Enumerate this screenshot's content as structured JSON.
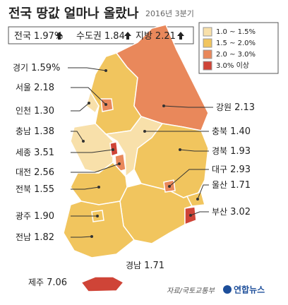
{
  "header": {
    "title": "전국 땅값 얼마나 올랐나",
    "subtitle": "2016년 3분기"
  },
  "summary": [
    {
      "name": "전국",
      "value": "1.97%"
    },
    {
      "name": "수도권",
      "value": "1.84"
    },
    {
      "name": "지방",
      "value": "2.21"
    }
  ],
  "legend": [
    {
      "label": "1.0 ~ 1.5%",
      "color": "#f8e0aa"
    },
    {
      "label": "1.5 ~ 2.0%",
      "color": "#f1c55e"
    },
    {
      "label": "2.0 ~ 3.0%",
      "color": "#e9885b"
    },
    {
      "label": "3.0% 이상",
      "color": "#cf4437"
    }
  ],
  "regions": [
    {
      "name": "경기",
      "value": "1.59%",
      "color": "#f1c55e"
    },
    {
      "name": "강원",
      "value": "2.13",
      "color": "#e9885b"
    },
    {
      "name": "서울",
      "value": "2.18",
      "color": "#e9885b"
    },
    {
      "name": "인천",
      "value": "1.30",
      "color": "#f8e0aa"
    },
    {
      "name": "충남",
      "value": "1.38",
      "color": "#f8e0aa"
    },
    {
      "name": "충북",
      "value": "1.40",
      "color": "#f8e0aa"
    },
    {
      "name": "경북",
      "value": "1.93",
      "color": "#f1c55e"
    },
    {
      "name": "세종",
      "value": "3.51",
      "color": "#cf4437"
    },
    {
      "name": "대전",
      "value": "2.56",
      "color": "#e9885b"
    },
    {
      "name": "전북",
      "value": "1.55",
      "color": "#f1c55e"
    },
    {
      "name": "경남",
      "value": "1.71",
      "color": "#f1c55e"
    },
    {
      "name": "대구",
      "value": "2.93",
      "color": "#e9885b"
    },
    {
      "name": "울산",
      "value": "1.71",
      "color": "#f1c55e"
    },
    {
      "name": "부산",
      "value": "3.02",
      "color": "#cf4437"
    },
    {
      "name": "전남",
      "value": "1.82",
      "color": "#f1c55e"
    },
    {
      "name": "광주",
      "value": "1.90",
      "color": "#f1c55e"
    },
    {
      "name": "제주",
      "value": "7.06",
      "color": "#cf4437"
    }
  ],
  "footer": {
    "source": "자료/국토교통부",
    "logo": "연합뉴스"
  }
}
